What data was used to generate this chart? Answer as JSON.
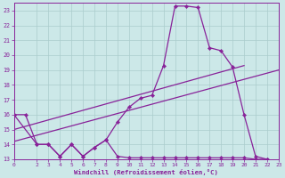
{
  "xlabel": "Windchill (Refroidissement éolien,°C)",
  "bg_color": "#cce8e8",
  "grid_color": "#aacccc",
  "line_color": "#882299",
  "xlim": [
    0,
    23
  ],
  "ylim": [
    13,
    23.5
  ],
  "yticks": [
    13,
    14,
    15,
    16,
    17,
    18,
    19,
    20,
    21,
    22,
    23
  ],
  "xticks": [
    0,
    2,
    3,
    4,
    5,
    6,
    7,
    8,
    9,
    10,
    11,
    12,
    13,
    14,
    15,
    16,
    17,
    18,
    19,
    20,
    21,
    22,
    23
  ],
  "line1_x": [
    0,
    1,
    2,
    3,
    4,
    5,
    6,
    7,
    8,
    9,
    10,
    11,
    12,
    13,
    14,
    15,
    16,
    17,
    18,
    19,
    20,
    21,
    22,
    23
  ],
  "line1_y": [
    16.0,
    16.0,
    14.0,
    14.0,
    13.2,
    14.0,
    13.2,
    13.8,
    14.3,
    13.2,
    13.1,
    13.1,
    13.1,
    13.1,
    13.1,
    13.1,
    13.1,
    13.1,
    13.1,
    13.1,
    13.1,
    13.0,
    13.0,
    12.8
  ],
  "line2_x": [
    0,
    2,
    3,
    4,
    5,
    6,
    7,
    8,
    9,
    10,
    11,
    12,
    13,
    14,
    15,
    16,
    17,
    18,
    19,
    20,
    21,
    22,
    23
  ],
  "line2_y": [
    16.0,
    14.0,
    14.0,
    13.2,
    14.0,
    13.2,
    13.8,
    14.3,
    15.5,
    16.5,
    17.1,
    17.3,
    19.3,
    23.3,
    23.3,
    23.2,
    20.5,
    20.3,
    19.2,
    16.0,
    13.2,
    13.0,
    12.8
  ],
  "trend1_x": [
    0,
    23
  ],
  "trend1_y": [
    14.2,
    19.0
  ],
  "trend2_x": [
    0,
    20
  ],
  "trend2_y": [
    15.0,
    19.3
  ]
}
